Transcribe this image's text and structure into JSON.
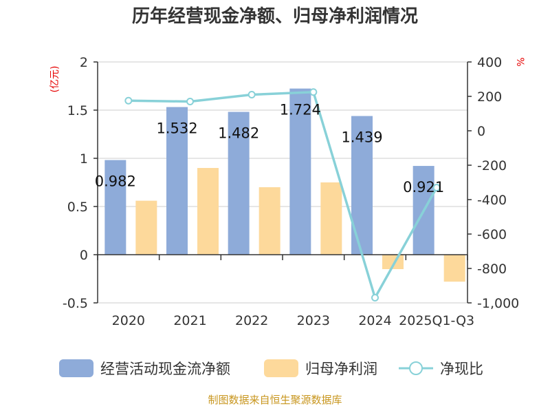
{
  "chart_data": {
    "type": "bar",
    "title": "历年经营现金净额、归母净利润情况",
    "categories": [
      "2020",
      "2021",
      "2022",
      "2023",
      "2024",
      "2025Q1-Q3"
    ],
    "series": [
      {
        "name": "经营活动现金流净额",
        "type": "bar",
        "axis": "left",
        "color": "#8eabd9",
        "values": [
          0.982,
          1.532,
          1.482,
          1.724,
          1.439,
          0.921
        ]
      },
      {
        "name": "归母净利润",
        "type": "bar",
        "axis": "left",
        "color": "#fdd99b",
        "values": [
          0.56,
          0.9,
          0.7,
          0.75,
          -0.15,
          -0.28
        ]
      },
      {
        "name": "净现比",
        "type": "line",
        "axis": "right",
        "color": "#88d1d8",
        "values": [
          175,
          170,
          210,
          225,
          -970,
          -330
        ]
      }
    ],
    "data_labels": [
      "0.982",
      "1.532",
      "1.482",
      "1.724",
      "1.439",
      "0.921"
    ],
    "y_left": {
      "label": "(亿元)",
      "ylim": [
        -0.5,
        2
      ],
      "ticks": [
        2,
        1.5,
        1,
        0.5,
        0,
        -0.5
      ],
      "tick_labels": [
        "2",
        "1.5",
        "1",
        "0.5",
        "0",
        "-0.5"
      ]
    },
    "y_right": {
      "label": "%",
      "ylim": [
        -1000,
        400
      ],
      "ticks": [
        400,
        200,
        0,
        -200,
        -400,
        -600,
        -800,
        -1000
      ],
      "tick_labels": [
        "400",
        "200",
        "0",
        "-200",
        "-400",
        "-600",
        "-800",
        "-1,000"
      ]
    },
    "grid": true,
    "legend_position": "bottom"
  },
  "footer": "制图数据来自恒生聚源数据库"
}
